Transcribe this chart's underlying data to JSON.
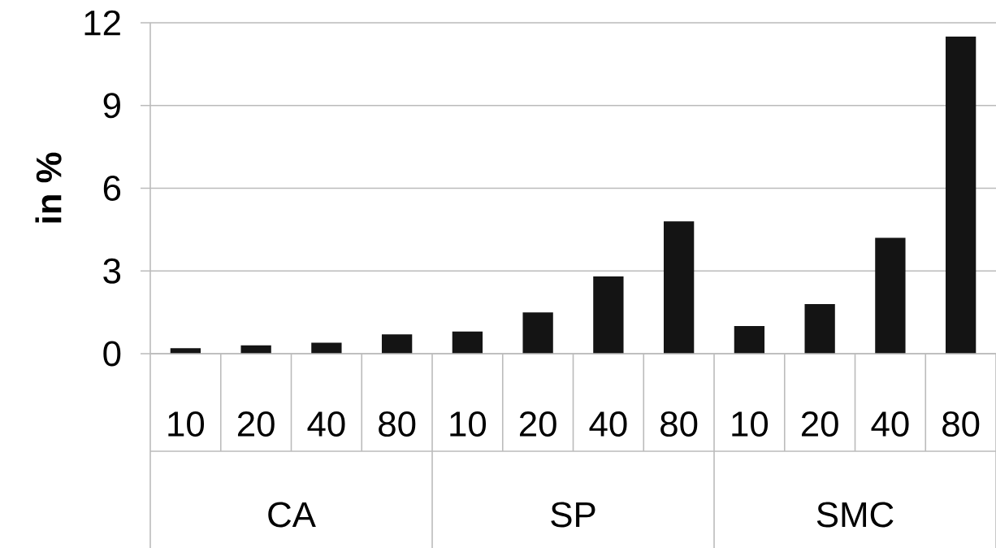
{
  "chart_data": {
    "type": "bar",
    "ylabel": "in %",
    "categories": [
      "10",
      "20",
      "40",
      "80",
      "10",
      "20",
      "40",
      "80",
      "10",
      "20",
      "40",
      "80"
    ],
    "values": [
      0.2,
      0.3,
      0.4,
      0.7,
      0.8,
      1.5,
      2.8,
      4.8,
      1.0,
      1.8,
      4.2,
      11.5
    ],
    "color": "#141414",
    "ylim": [
      0,
      12
    ],
    "yticks": [
      0,
      3,
      6,
      9,
      12
    ],
    "grid": "y",
    "annotations": [
      "CA",
      "SP",
      "SMC"
    ]
  }
}
